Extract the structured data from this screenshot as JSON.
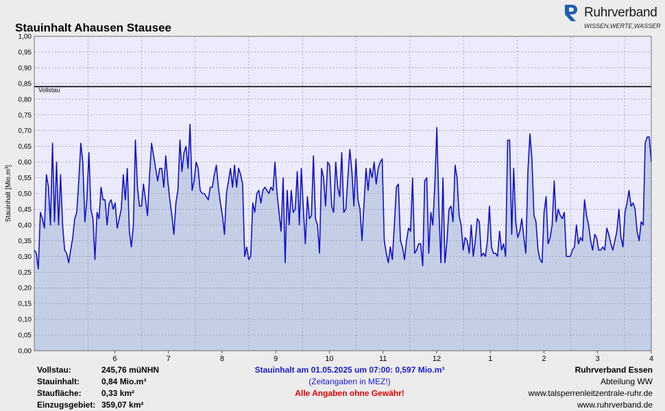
{
  "title": "Stauinhalt Ahausen Stausee",
  "brand": {
    "name": "Ruhrverband",
    "tagline": "WISSEN,WERTE,WASSER",
    "logo_color": "#1d5fae"
  },
  "colors": {
    "line": "#1010c8",
    "fill": "#c4cfe6",
    "plot_bg": "#ecebfb",
    "grid": "#9a9ab0"
  },
  "chart_data": {
    "type": "area",
    "ylabel": "Stauinhalt [Mio.m³]",
    "ylim": [
      0,
      1
    ],
    "yticks": [
      "0,00",
      "0,05",
      "0,10",
      "0,15",
      "0,20",
      "0,25",
      "0,30",
      "0,35",
      "0,40",
      "0,45",
      "0,50",
      "0,55",
      "0,60",
      "0,65",
      "0,70",
      "0,75",
      "0,80",
      "0,85",
      "0,90",
      "0,95",
      "1,00"
    ],
    "xtick_labels": [
      "6",
      "7",
      "8",
      "9",
      "10",
      "11",
      "12",
      "1",
      "2",
      "3",
      "4"
    ],
    "reference_line": {
      "label": "Vollstau",
      "value": 0.84
    },
    "grid": true,
    "series": [
      {
        "values": [
          0.32,
          0.31,
          0.26,
          0.44,
          0.42,
          0.39,
          0.56,
          0.52,
          0.4,
          0.66,
          0.41,
          0.6,
          0.4,
          0.56,
          0.4,
          0.32,
          0.31,
          0.28,
          0.32,
          0.36,
          0.42,
          0.44,
          0.54,
          0.66,
          0.6,
          0.41,
          0.48,
          0.63,
          0.45,
          0.42,
          0.29,
          0.44,
          0.42,
          0.52,
          0.48,
          0.48,
          0.4,
          0.47,
          0.48,
          0.45,
          0.47,
          0.39,
          0.42,
          0.45,
          0.56,
          0.48,
          0.58,
          0.38,
          0.33,
          0.4,
          0.67,
          0.52,
          0.46,
          0.46,
          0.53,
          0.48,
          0.43,
          0.56,
          0.66,
          0.62,
          0.58,
          0.54,
          0.58,
          0.58,
          0.52,
          0.62,
          0.54,
          0.48,
          0.43,
          0.37,
          0.47,
          0.51,
          0.67,
          0.57,
          0.63,
          0.65,
          0.58,
          0.72,
          0.51,
          0.54,
          0.6,
          0.58,
          0.51,
          0.5,
          0.5,
          0.49,
          0.48,
          0.52,
          0.52,
          0.56,
          0.59,
          0.52,
          0.47,
          0.43,
          0.37,
          0.5,
          0.54,
          0.58,
          0.52,
          0.59,
          0.52,
          0.58,
          0.56,
          0.53,
          0.3,
          0.33,
          0.29,
          0.3,
          0.47,
          0.44,
          0.5,
          0.51,
          0.47,
          0.51,
          0.52,
          0.51,
          0.5,
          0.52,
          0.51,
          0.6,
          0.5,
          0.44,
          0.38,
          0.55,
          0.28,
          0.51,
          0.4,
          0.51,
          0.44,
          0.45,
          0.57,
          0.4,
          0.58,
          0.45,
          0.34,
          0.49,
          0.42,
          0.43,
          0.62,
          0.42,
          0.4,
          0.31,
          0.58,
          0.55,
          0.46,
          0.6,
          0.59,
          0.46,
          0.44,
          0.6,
          0.52,
          0.49,
          0.63,
          0.44,
          0.45,
          0.55,
          0.64,
          0.57,
          0.46,
          0.61,
          0.48,
          0.45,
          0.35,
          0.47,
          0.58,
          0.51,
          0.58,
          0.55,
          0.6,
          0.53,
          0.58,
          0.6,
          0.61,
          0.35,
          0.31,
          0.28,
          0.33,
          0.29,
          0.4,
          0.52,
          0.53,
          0.35,
          0.33,
          0.29,
          0.35,
          0.39,
          0.38,
          0.55,
          0.31,
          0.32,
          0.34,
          0.34,
          0.27,
          0.54,
          0.55,
          0.31,
          0.44,
          0.4,
          0.53,
          0.71,
          0.45,
          0.28,
          0.55,
          0.28,
          0.35,
          0.45,
          0.46,
          0.41,
          0.59,
          0.55,
          0.43,
          0.4,
          0.32,
          0.36,
          0.35,
          0.31,
          0.4,
          0.3,
          0.35,
          0.42,
          0.41,
          0.3,
          0.31,
          0.3,
          0.35,
          0.46,
          0.33,
          0.31,
          0.31,
          0.3,
          0.38,
          0.32,
          0.34,
          0.3,
          0.67,
          0.67,
          0.37,
          0.58,
          0.41,
          0.36,
          0.38,
          0.42,
          0.36,
          0.31,
          0.57,
          0.69,
          0.61,
          0.43,
          0.41,
          0.32,
          0.29,
          0.28,
          0.44,
          0.49,
          0.34,
          0.36,
          0.4,
          0.54,
          0.41,
          0.45,
          0.43,
          0.42,
          0.44,
          0.3,
          0.3,
          0.3,
          0.32,
          0.33,
          0.4,
          0.34,
          0.36,
          0.35,
          0.48,
          0.43,
          0.4,
          0.35,
          0.32,
          0.37,
          0.36,
          0.32,
          0.32,
          0.33,
          0.32,
          0.39,
          0.37,
          0.34,
          0.32,
          0.35,
          0.38,
          0.45,
          0.36,
          0.33,
          0.44,
          0.47,
          0.51,
          0.46,
          0.47,
          0.45,
          0.38,
          0.35,
          0.41,
          0.4,
          0.66,
          0.68,
          0.68,
          0.6
        ]
      }
    ]
  },
  "info": {
    "vollstau_label": "Vollstau:",
    "vollstau_value": "245,76 müNHN",
    "stauinhalt_label": "Stauinhalt:",
    "stauinhalt_value": "0,84 Mio.m³",
    "staufläche_label": "Staufläche:",
    "staufläche_value": "0,33 km²",
    "einzugsgebiet_label": "Einzugsgebiet:",
    "einzugsgebiet_value": "359,07 km²",
    "current": "Stauinhalt am 01.05.2025 um 07:00:  0,597 Mio.m³",
    "time_note": "(Zeitangaben in MEZ!)",
    "disclaimer": "Alle Angaben ohne Gewähr!",
    "org": "Ruhrverband Essen",
    "dept": "Abteilung WW",
    "url1": "www.talsperrenleitzentrale-ruhr.de",
    "url2": "www.ruhrverband.de"
  }
}
